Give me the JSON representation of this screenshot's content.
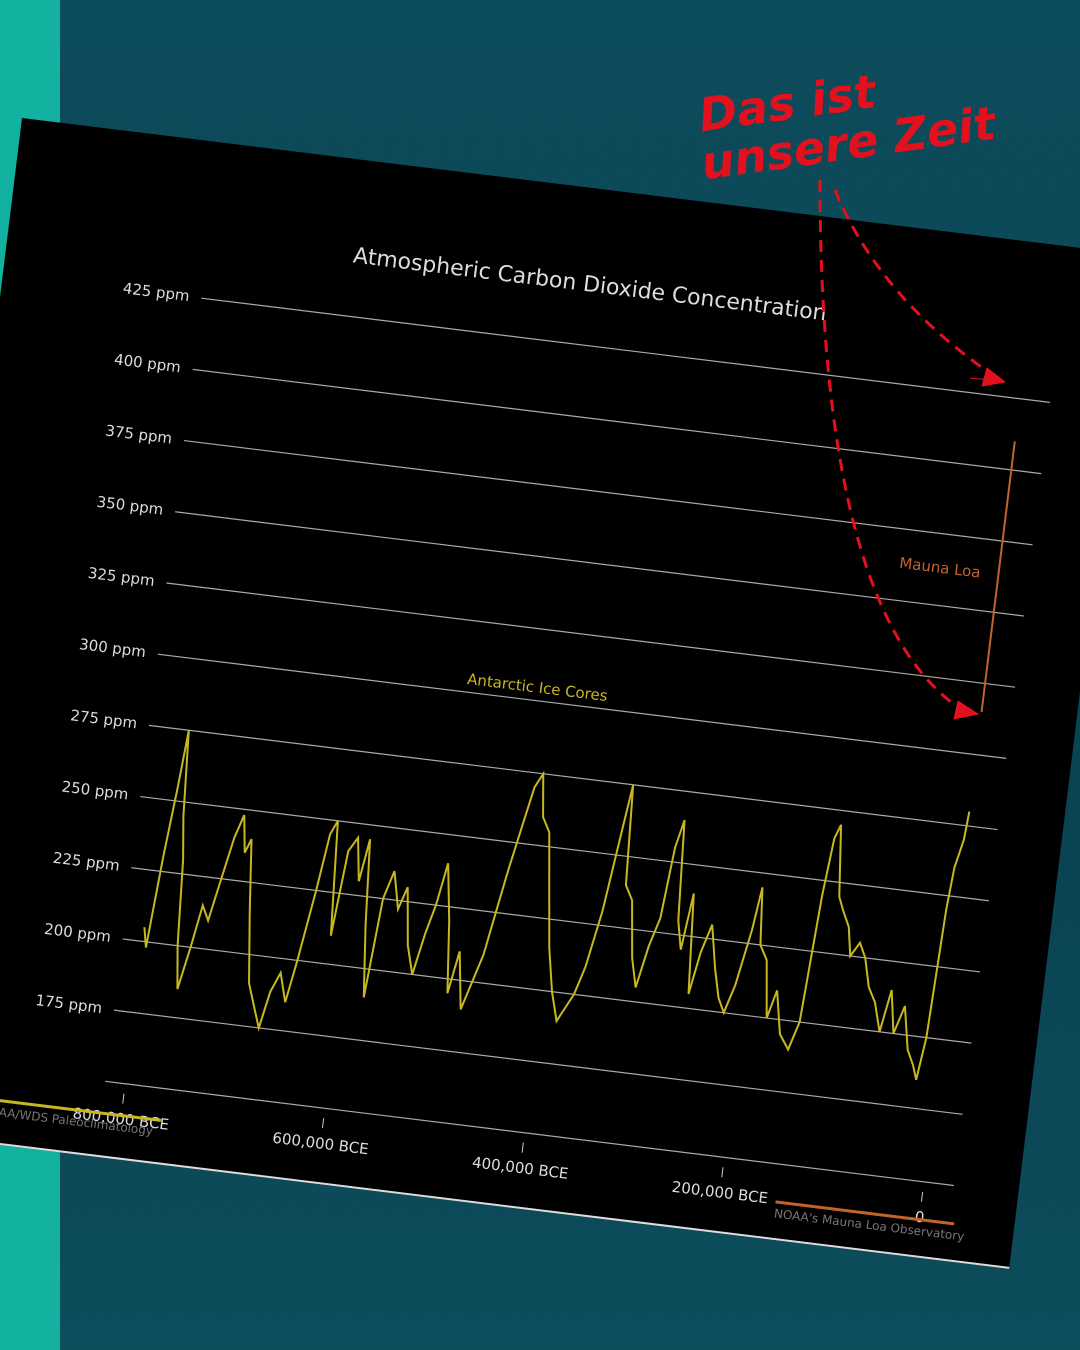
{
  "chart_data": {
    "type": "line",
    "title": "Atmospheric Carbon Dioxide Concentration",
    "annotation": [
      "Das ist",
      "unsere Zeit"
    ],
    "sources": [
      {
        "name": "NOAA/WDS Paleoclimatology",
        "color": "#c8b820"
      },
      {
        "name": "NOAA's Mauna Loa Observatory",
        "color": "#c0642c"
      }
    ],
    "xlim": [
      -820000,
      30000
    ],
    "xticks": [
      {
        "value": -800000,
        "label": "800,000 BCE"
      },
      {
        "value": -600000,
        "label": "600,000 BCE"
      },
      {
        "value": -400000,
        "label": "400,000 BCE"
      },
      {
        "value": -200000,
        "label": "200,000 BCE"
      },
      0
    ],
    "ylim": [
      150,
      425
    ],
    "yticks": [
      {
        "value": 175,
        "label": "175 ppm"
      },
      {
        "value": 200,
        "label": "200 ppm"
      },
      {
        "value": 225,
        "label": "225 ppm"
      },
      {
        "value": 250,
        "label": "250 ppm"
      },
      {
        "value": 275,
        "label": "275 ppm"
      },
      {
        "value": 300,
        "label": "300 ppm"
      },
      {
        "value": 325,
        "label": "325 ppm"
      },
      {
        "value": 350,
        "label": "350 ppm"
      },
      {
        "value": 375,
        "label": "375 ppm"
      },
      {
        "value": 400,
        "label": "400 ppm"
      },
      {
        "value": 425,
        "label": "425 ppm"
      }
    ],
    "grid": true,
    "series": [
      {
        "name": "Antarctic Ice Cores",
        "color": "#c8b820",
        "x": [
          -800000,
          -796000,
          -790000,
          -784000,
          -780000,
          -775000,
          -770000,
          -765000,
          -760000,
          -752000,
          -745000,
          -738000,
          -730000,
          -722000,
          -715000,
          -710000,
          -705000,
          -698000,
          -690000,
          -682000,
          -675000,
          -668000,
          -660000,
          -652000,
          -645000,
          -635000,
          -628000,
          -622000,
          -615000,
          -608000,
          -600000,
          -594000,
          -588000,
          -582000,
          -575000,
          -568000,
          -560000,
          -552000,
          -545000,
          -538000,
          -530000,
          -522000,
          -515000,
          -508000,
          -500000,
          -493000,
          -486000,
          -478000,
          -470000,
          -462000,
          -455000,
          -448000,
          -440000,
          -432000,
          -425000,
          -420000,
          -412000,
          -405000,
          -398000,
          -390000,
          -382000,
          -375000,
          -368000,
          -360000,
          -350000,
          -340000,
          -335000,
          -330000,
          -322000,
          -315000,
          -308000,
          -300000,
          -292000,
          -286000,
          -280000,
          -274000,
          -268000,
          -262000,
          -255000,
          -248000,
          -240000,
          -232000,
          -225000,
          -218000,
          -210000,
          -200000,
          -195000,
          -190000,
          -182000,
          -175000,
          -168000,
          -160000,
          -150000,
          -142000,
          -135000,
          -130000,
          -125000,
          -118000,
          -112000,
          -105000,
          -100000,
          -92000,
          -85000,
          -78000,
          -70000,
          -62000,
          -55000,
          -48000,
          -40000,
          -32000,
          -25000,
          -20000,
          -15000,
          -11000,
          -8000,
          -5000,
          -2000,
          0
        ],
        "values": [
          205,
          198,
          230,
          255,
          275,
          245,
          230,
          200,
          185,
          200,
          215,
          210,
          225,
          240,
          248,
          235,
          240,
          215,
          190,
          182,
          175,
          188,
          195,
          185,
          200,
          225,
          245,
          250,
          210,
          240,
          245,
          230,
          245,
          215,
          190,
          225,
          235,
          222,
          230,
          210,
          200,
          215,
          225,
          240,
          220,
          195,
          210,
          190,
          200,
          210,
          225,
          240,
          255,
          270,
          275,
          260,
          255,
          235,
          215,
          200,
          190,
          195,
          200,
          210,
          230,
          260,
          275,
          240,
          235,
          215,
          205,
          220,
          230,
          255,
          265,
          230,
          220,
          240,
          205,
          220,
          230,
          215,
          205,
          200,
          210,
          230,
          245,
          225,
          220,
          200,
          210,
          195,
          190,
          200,
          245,
          265,
          270,
          245,
          240,
          235,
          225,
          230,
          225,
          215,
          210,
          200,
          215,
          200,
          210,
          195,
          190,
          185,
          200,
          245,
          260,
          265,
          270,
          280
        ]
      },
      {
        "name": "Mauna Loa",
        "color": "#c0642c",
        "x": [
          -60,
          -30,
          0
        ],
        "values": [
          315,
          340,
          410
        ]
      }
    ]
  }
}
